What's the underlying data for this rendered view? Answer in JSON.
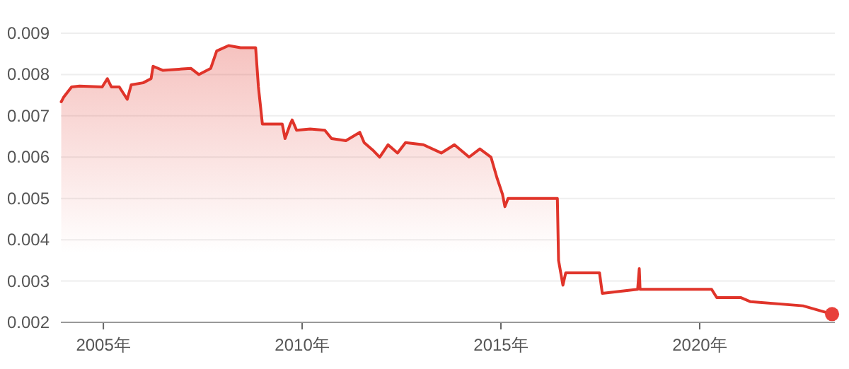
{
  "chart_data": {
    "type": "area",
    "grid": "y",
    "xlim": [
      2003.93,
      2023.4
    ],
    "ylim": [
      0.002,
      0.009
    ],
    "xticks": [
      {
        "value": 2005,
        "label": "2005年"
      },
      {
        "value": 2010,
        "label": "2010年"
      },
      {
        "value": 2015,
        "label": "2015年"
      },
      {
        "value": 2020,
        "label": "2020年"
      }
    ],
    "yticks": [
      0.002,
      0.003,
      0.004,
      0.005,
      0.006,
      0.007,
      0.008,
      0.009
    ],
    "series": [
      {
        "color": "#e0342a",
        "x": [
          2003.94,
          2004.0,
          2004.2,
          2004.4,
          2004.97,
          2005.1,
          2005.2,
          2005.4,
          2005.6,
          2005.7,
          2006.0,
          2006.2,
          2006.25,
          2006.5,
          2007.2,
          2007.4,
          2007.7,
          2007.85,
          2008.15,
          2008.45,
          2008.83,
          2008.9,
          2009.0,
          2009.33,
          2009.5,
          2009.57,
          2009.7,
          2009.75,
          2009.86,
          2010.2,
          2010.57,
          2010.74,
          2011.1,
          2011.45,
          2011.56,
          2011.8,
          2011.95,
          2012.16,
          2012.4,
          2012.6,
          2013.05,
          2013.5,
          2013.83,
          2014.2,
          2014.47,
          2014.75,
          2014.9,
          2015.04,
          2015.1,
          2015.18,
          2016.42,
          2016.45,
          2016.56,
          2016.63,
          2017.48,
          2017.55,
          2018.44,
          2018.48,
          2018.5,
          2020.3,
          2020.43,
          2021.03,
          2021.28,
          2022.6,
          2023.33
        ],
        "values": [
          0.00734,
          0.00745,
          0.0077,
          0.00772,
          0.0077,
          0.0079,
          0.0077,
          0.0077,
          0.0074,
          0.00775,
          0.0078,
          0.0079,
          0.0082,
          0.0081,
          0.00815,
          0.008,
          0.00815,
          0.00857,
          0.0087,
          0.00865,
          0.00865,
          0.0077,
          0.0068,
          0.0068,
          0.0068,
          0.00645,
          0.0068,
          0.0069,
          0.00665,
          0.00668,
          0.00665,
          0.00645,
          0.0064,
          0.0066,
          0.00635,
          0.00615,
          0.006,
          0.0063,
          0.0061,
          0.00635,
          0.0063,
          0.0061,
          0.0063,
          0.006,
          0.0062,
          0.006,
          0.0055,
          0.0051,
          0.0048,
          0.005,
          0.005,
          0.0035,
          0.0029,
          0.0032,
          0.0032,
          0.0027,
          0.0028,
          0.0033,
          0.0028,
          0.0028,
          0.0026,
          0.0026,
          0.0025,
          0.0024,
          0.0022
        ]
      },
      {
        "type": "scatter",
        "color": "#e8403a",
        "x": [
          2023.33
        ],
        "values": [
          0.0022
        ]
      }
    ]
  }
}
